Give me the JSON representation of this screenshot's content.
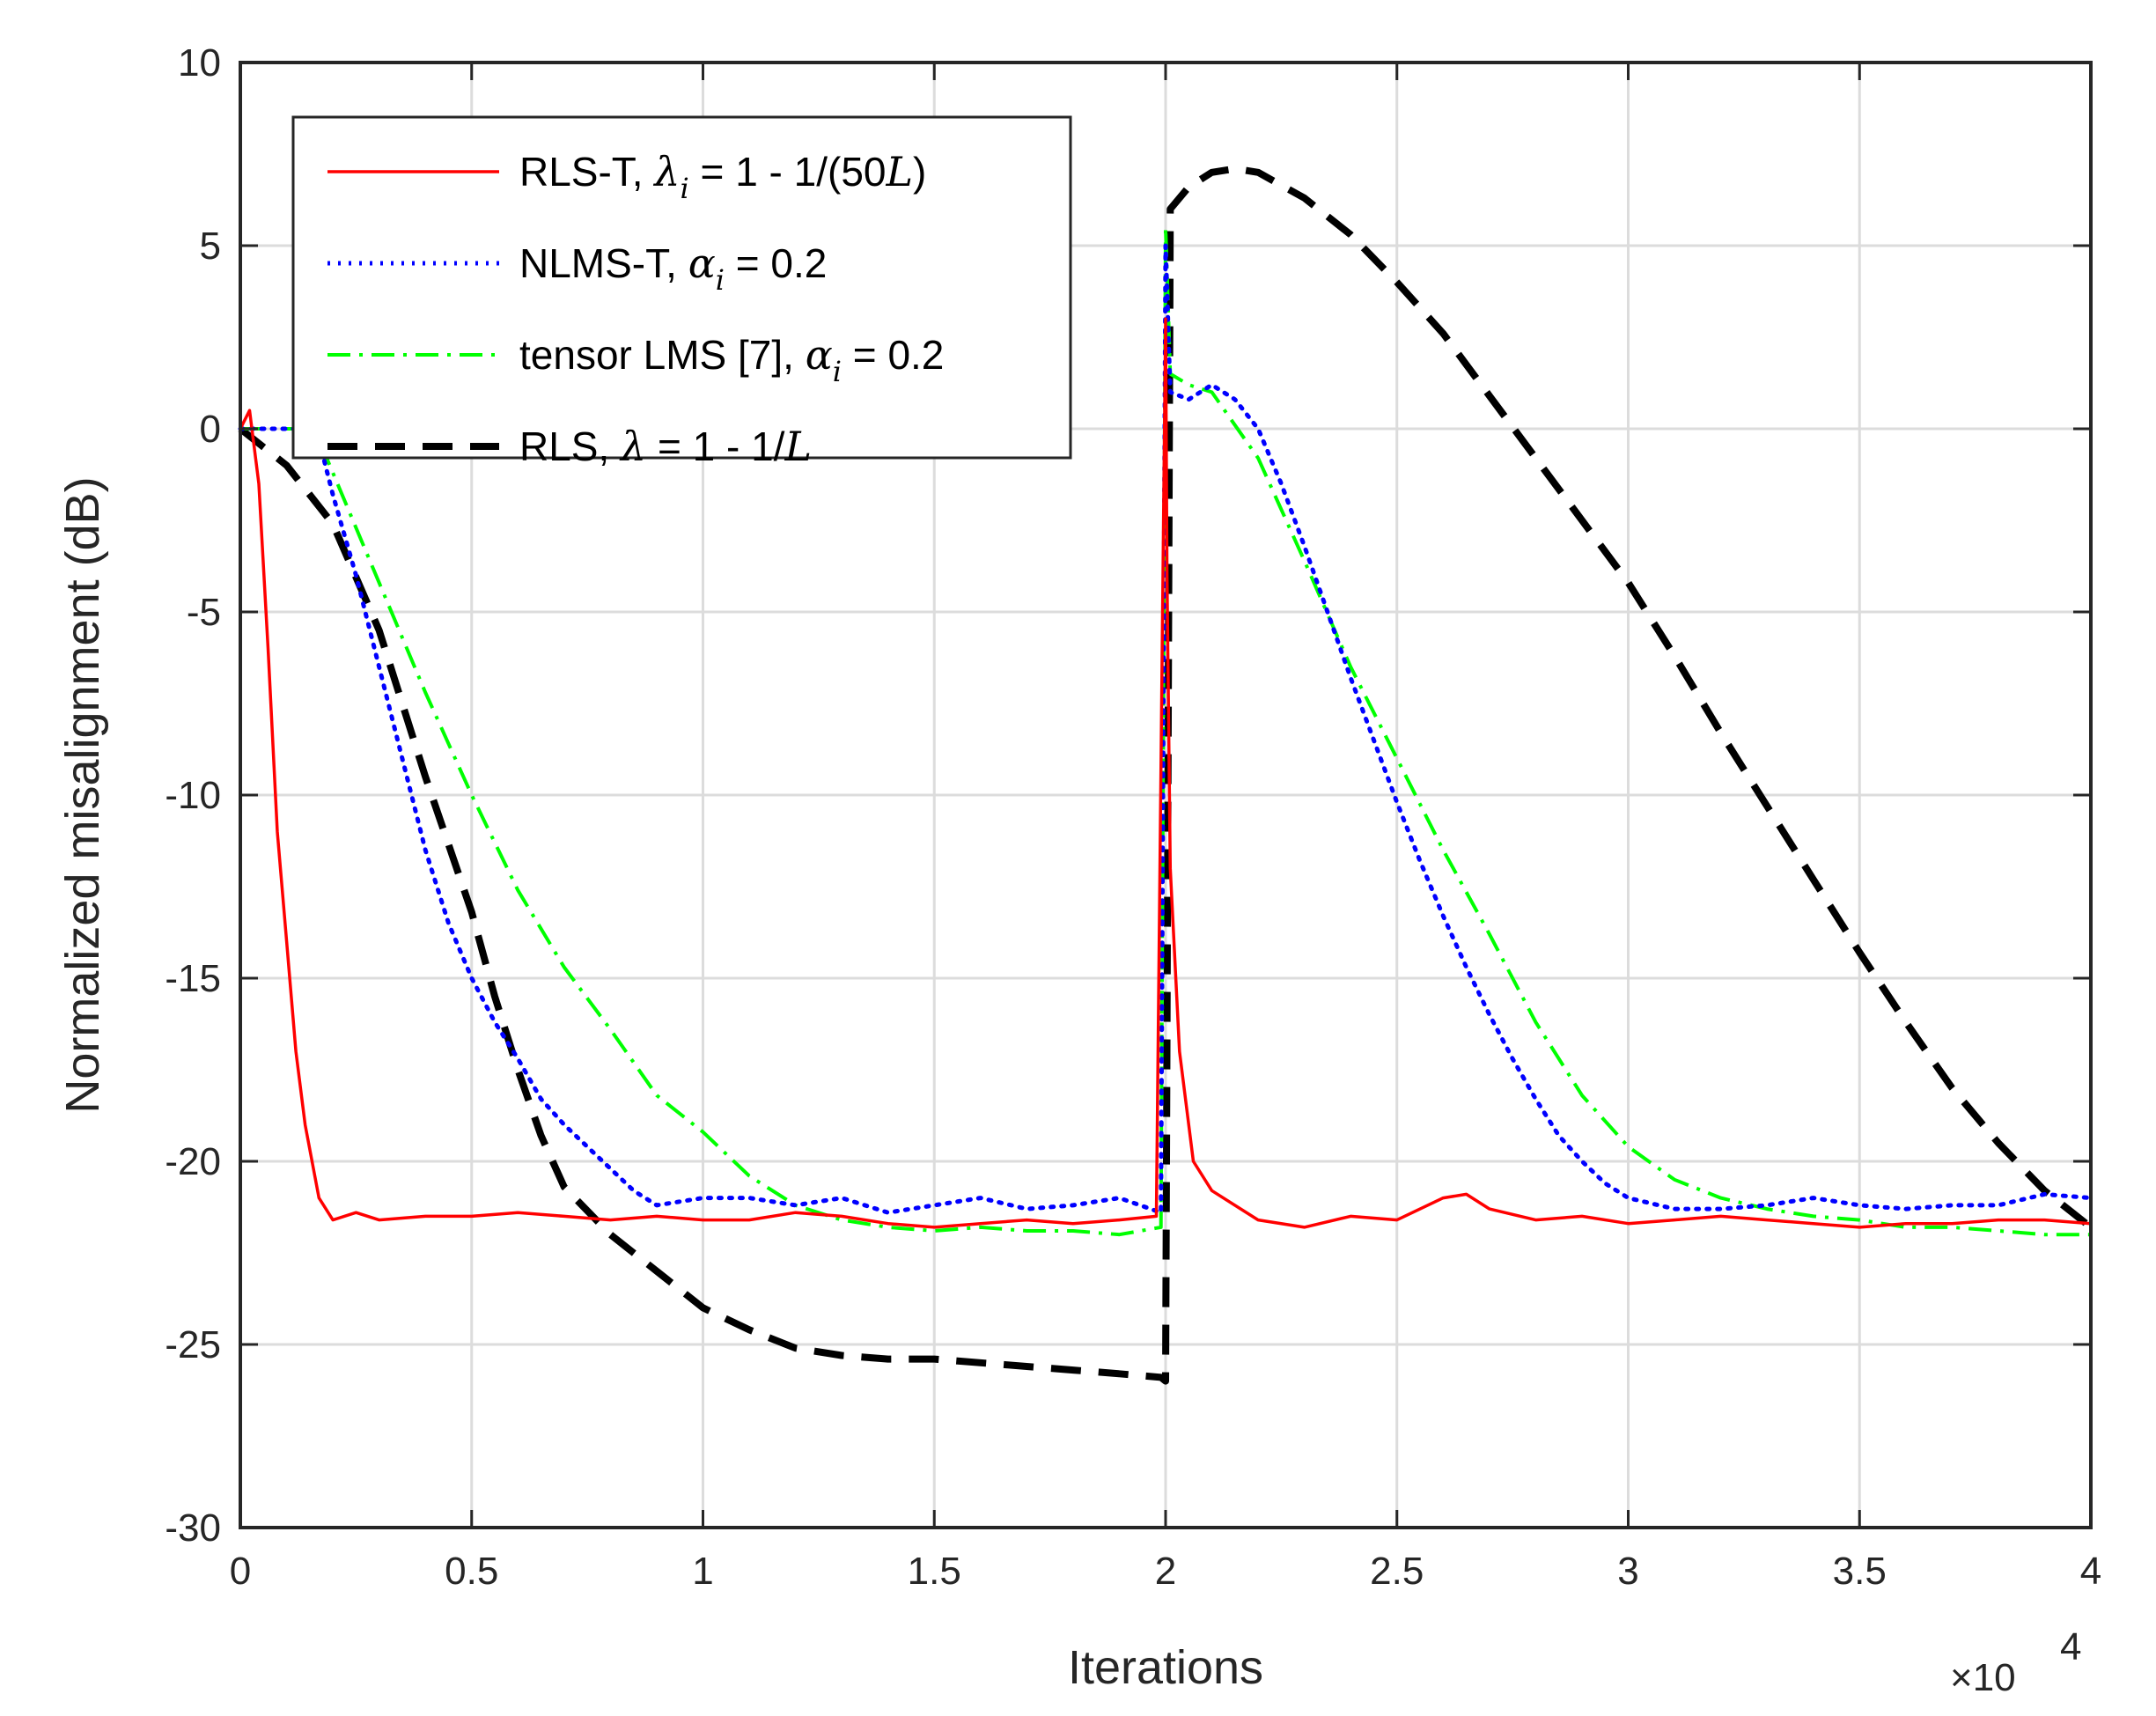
{
  "chart_data": {
    "type": "line",
    "title": "",
    "xlabel": "Iterations",
    "ylabel": "Normalized misalignment (dB)",
    "x_multiplier_text": "×10",
    "x_multiplier_exp": "4",
    "xlim": [
      0,
      4
    ],
    "ylim": [
      -30,
      10
    ],
    "x_ticks": [
      "0",
      "0.5",
      "1",
      "1.5",
      "2",
      "2.5",
      "3",
      "3.5",
      "4"
    ],
    "y_ticks": [
      "10",
      "5",
      "0",
      "-5",
      "-10",
      "-15",
      "-20",
      "-25",
      "-30"
    ],
    "grid": true,
    "legend_position": "top-left",
    "series": [
      {
        "name": "RLS-T, λi = 1 - 1/(50L)",
        "legend": {
          "pre": "RLS-T, ",
          "sym": "λ",
          "sub": "i",
          "post": " = 1 - 1/(50",
          "it": "L",
          "post2": ")"
        },
        "color": "#ff0000",
        "style": "solid",
        "x": [
          0,
          0.02,
          0.04,
          0.06,
          0.08,
          0.1,
          0.12,
          0.14,
          0.17,
          0.2,
          0.25,
          0.3,
          0.4,
          0.5,
          0.6,
          0.7,
          0.8,
          0.9,
          1.0,
          1.1,
          1.2,
          1.3,
          1.4,
          1.5,
          1.6,
          1.7,
          1.8,
          1.9,
          1.98,
          2.0,
          2.003,
          2.01,
          2.03,
          2.06,
          2.1,
          2.2,
          2.3,
          2.4,
          2.5,
          2.6,
          2.65,
          2.7,
          2.8,
          2.9,
          3.0,
          3.1,
          3.2,
          3.3,
          3.4,
          3.5,
          3.6,
          3.7,
          3.8,
          3.9,
          4.0
        ],
        "y": [
          0,
          0.5,
          -1.5,
          -6,
          -11,
          -14,
          -17,
          -19,
          -21,
          -21.6,
          -21.4,
          -21.6,
          -21.5,
          -21.5,
          -21.4,
          -21.5,
          -21.6,
          -21.5,
          -21.6,
          -21.6,
          -21.4,
          -21.5,
          -21.7,
          -21.8,
          -21.7,
          -21.6,
          -21.7,
          -21.6,
          -21.5,
          3.0,
          -4.0,
          -12,
          -17,
          -20,
          -20.8,
          -21.6,
          -21.8,
          -21.5,
          -21.6,
          -21.0,
          -20.9,
          -21.3,
          -21.6,
          -21.5,
          -21.7,
          -21.6,
          -21.5,
          -21.6,
          -21.7,
          -21.8,
          -21.7,
          -21.7,
          -21.6,
          -21.6,
          -21.7
        ]
      },
      {
        "name": "NLMS-T, αi = 0.2",
        "legend": {
          "pre": "NLMS-T, ",
          "sym": "α",
          "sub": "i",
          "post": " = 0.2",
          "it": "",
          "post2": ""
        },
        "color": "#0000ff",
        "style": "dotted",
        "x": [
          0,
          0.05,
          0.1,
          0.15,
          0.17,
          0.2,
          0.25,
          0.3,
          0.35,
          0.4,
          0.45,
          0.5,
          0.55,
          0.6,
          0.65,
          0.7,
          0.75,
          0.8,
          0.85,
          0.9,
          1.0,
          1.1,
          1.2,
          1.3,
          1.4,
          1.5,
          1.6,
          1.7,
          1.8,
          1.9,
          1.99,
          2.0,
          2.01,
          2.05,
          2.1,
          2.15,
          2.2,
          2.25,
          2.3,
          2.35,
          2.4,
          2.45,
          2.5,
          2.55,
          2.6,
          2.65,
          2.7,
          2.75,
          2.8,
          2.85,
          2.9,
          2.95,
          3.0,
          3.1,
          3.2,
          3.3,
          3.4,
          3.5,
          3.6,
          3.7,
          3.8,
          3.9,
          4.0
        ],
        "y": [
          0,
          0,
          0,
          0,
          -0.3,
          -1.8,
          -4,
          -6.5,
          -9,
          -11.5,
          -13.5,
          -15,
          -16.2,
          -17.2,
          -18.3,
          -19,
          -19.6,
          -20.2,
          -20.8,
          -21.2,
          -21.0,
          -21.0,
          -21.2,
          -21.0,
          -21.4,
          -21.2,
          -21.0,
          -21.3,
          -21.2,
          -21.0,
          -21.4,
          5.0,
          1.0,
          0.8,
          1.2,
          0.8,
          0,
          -1.5,
          -3.2,
          -5,
          -6.8,
          -8.5,
          -10.2,
          -11.8,
          -13.3,
          -14.7,
          -16,
          -17.2,
          -18.3,
          -19.3,
          -20.0,
          -20.6,
          -21.0,
          -21.3,
          -21.3,
          -21.2,
          -21.0,
          -21.2,
          -21.3,
          -21.2,
          -21.2,
          -20.9,
          -21.0
        ]
      },
      {
        "name": "tensor LMS [7], αi = 0.2",
        "legend": {
          "pre": "tensor LMS [7], ",
          "sym": "α",
          "sub": "i",
          "post": " = 0.2",
          "it": "",
          "post2": ""
        },
        "color": "#00ff00",
        "style": "dashdot",
        "x": [
          0,
          0.1,
          0.15,
          0.17,
          0.2,
          0.3,
          0.4,
          0.5,
          0.6,
          0.7,
          0.8,
          0.9,
          1.0,
          1.1,
          1.2,
          1.3,
          1.4,
          1.5,
          1.6,
          1.7,
          1.8,
          1.9,
          1.99,
          2.0,
          2.01,
          2.05,
          2.1,
          2.2,
          2.3,
          2.4,
          2.5,
          2.6,
          2.7,
          2.8,
          2.9,
          3.0,
          3.1,
          3.2,
          3.3,
          3.4,
          3.5,
          3.6,
          3.7,
          3.8,
          3.9,
          4.0
        ],
        "y": [
          0,
          0,
          0,
          -0.3,
          -1.2,
          -4.2,
          -7.2,
          -10,
          -12.6,
          -14.7,
          -16.4,
          -18.2,
          -19.2,
          -20.4,
          -21.2,
          -21.6,
          -21.8,
          -21.9,
          -21.8,
          -21.9,
          -21.9,
          -22.0,
          -21.8,
          5.5,
          1.5,
          1.2,
          1.0,
          -0.8,
          -3.6,
          -6.5,
          -9.0,
          -11.5,
          -13.8,
          -16.2,
          -18.2,
          -19.6,
          -20.5,
          -21.0,
          -21.3,
          -21.5,
          -21.6,
          -21.8,
          -21.8,
          -21.9,
          -22.0,
          -22.0
        ]
      },
      {
        "name": "RLS, λ = 1 - 1/L",
        "legend": {
          "pre": "RLS, ",
          "sym": "λ",
          "sub": "",
          "post": " = 1 - 1/",
          "it": "L",
          "post2": ""
        },
        "color": "#000000",
        "style": "dashed",
        "x": [
          0,
          0.1,
          0.2,
          0.3,
          0.4,
          0.5,
          0.55,
          0.6,
          0.65,
          0.7,
          0.8,
          0.9,
          1.0,
          1.1,
          1.2,
          1.3,
          1.4,
          1.5,
          1.6,
          1.7,
          1.8,
          1.9,
          1.99,
          2.0,
          2.01,
          2.05,
          2.1,
          2.15,
          2.2,
          2.3,
          2.4,
          2.5,
          2.6,
          2.7,
          2.8,
          2.9,
          3.0,
          3.1,
          3.2,
          3.3,
          3.4,
          3.5,
          3.6,
          3.7,
          3.8,
          3.9,
          4.0
        ],
        "y": [
          0,
          -1,
          -2.6,
          -5.5,
          -9.5,
          -13.2,
          -15.5,
          -17.5,
          -19.3,
          -20.7,
          -22.0,
          -23.0,
          -24.0,
          -24.6,
          -25.1,
          -25.3,
          -25.4,
          -25.4,
          -25.5,
          -25.6,
          -25.7,
          -25.8,
          -25.9,
          -26.0,
          6.0,
          6.6,
          7.0,
          7.1,
          7.0,
          6.3,
          5.3,
          4.0,
          2.6,
          0.9,
          -0.8,
          -2.5,
          -4.2,
          -6.2,
          -8.3,
          -10.3,
          -12.3,
          -14.3,
          -16.2,
          -18.0,
          -19.5,
          -20.8,
          -21.8
        ]
      }
    ]
  }
}
